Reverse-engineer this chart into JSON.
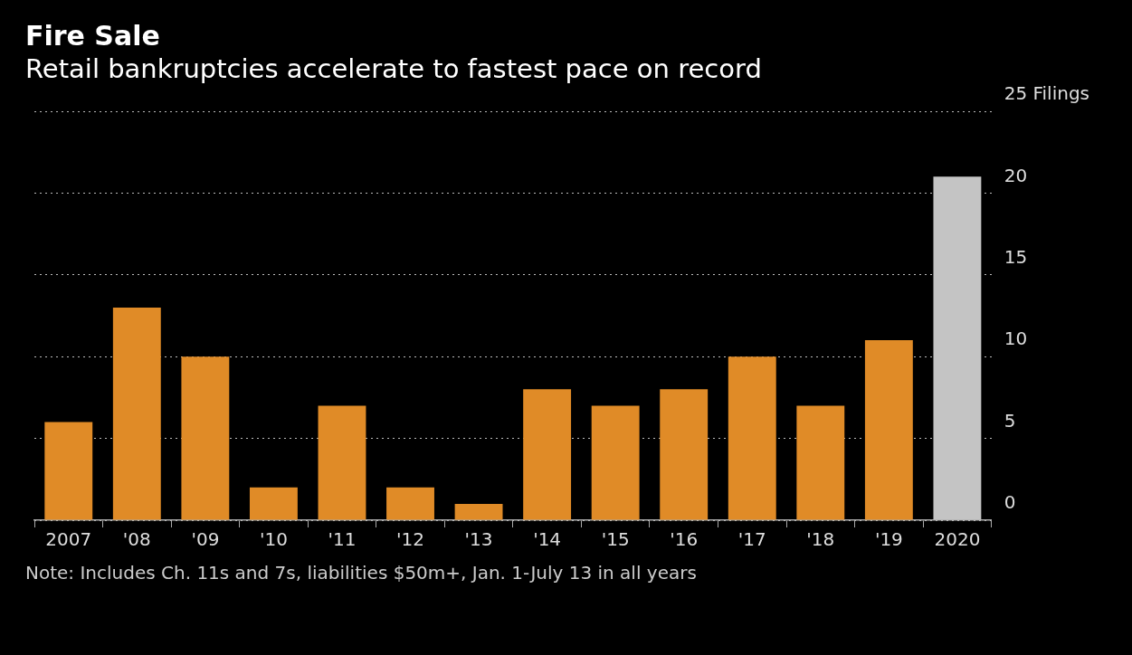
{
  "chart_data": {
    "type": "bar",
    "title": "Fire Sale",
    "subtitle": "Retail bankruptcies accelerate to fastest pace on record",
    "categories": [
      "2007",
      "'08",
      "'09",
      "'10",
      "'11",
      "'12",
      "'13",
      "'14",
      "'15",
      "'16",
      "'17",
      "'18",
      "'19",
      "2020"
    ],
    "values": [
      6,
      13,
      10,
      2,
      7,
      2,
      1,
      8,
      7,
      8,
      10,
      7,
      11,
      21
    ],
    "colors": [
      "#e08b27",
      "#e08b27",
      "#e08b27",
      "#e08b27",
      "#e08b27",
      "#e08b27",
      "#e08b27",
      "#e08b27",
      "#e08b27",
      "#e08b27",
      "#e08b27",
      "#e08b27",
      "#e08b27",
      "#c4c4c4"
    ],
    "ylim": [
      0,
      25
    ],
    "yticks": [
      0,
      5,
      10,
      15,
      20,
      {
        "value": 25,
        "label": "25 Filings"
      }
    ],
    "grid": "y",
    "legend": false,
    "annotations": [
      "Note: Includes Ch. 11s and 7s, liabilities $50m+, Jan. 1-July 13 in all years"
    ]
  }
}
